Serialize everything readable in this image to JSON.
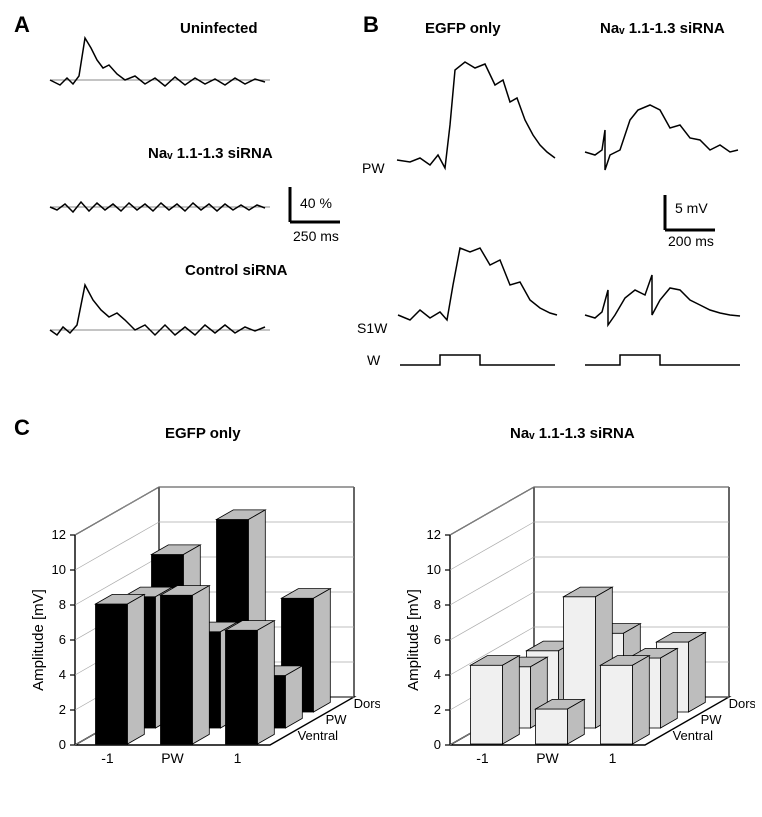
{
  "panelA": {
    "label": "A",
    "traces": {
      "uninfected": {
        "title": "Uninfected"
      },
      "sirna": {
        "title": "Naᵥ 1.1-1.3 siRNA"
      },
      "control": {
        "title": "Control siRNA"
      }
    },
    "scalebar": {
      "y_label": "40 %",
      "x_label": "250 ms"
    }
  },
  "panelB": {
    "label": "B",
    "left_title": "EGFP only",
    "right_title": "Naᵥ 1.1-1.3 siRNA",
    "row1_label": "PW",
    "row2_label": "S1W",
    "stim_label": "W",
    "scalebar": {
      "y_label": "5 mV",
      "x_label": "200 ms"
    }
  },
  "panelC": {
    "label": "C",
    "left_title": "EGFP only",
    "right_title": "Naᵥ 1.1-1.3 siRNA",
    "y_axis_label": "Amplitude [mV]",
    "y_ticks": [
      0,
      2,
      4,
      6,
      8,
      10,
      12
    ],
    "x_categories": [
      "-1",
      "PW",
      "1"
    ],
    "z_categories": [
      "Dorsal",
      "PW",
      "Ventral"
    ],
    "left_bars": {
      "dorsal": {
        "-1": 9.0,
        "PW": 11.0,
        "1": 6.5
      },
      "pw": {
        "-1": 7.5,
        "PW": 5.5,
        "1": 3.0
      },
      "ventral": {
        "-1": 8.0,
        "PW": 8.5,
        "1": 6.5
      }
    },
    "right_bars": {
      "dorsal": {
        "-1": 3.5,
        "PW": 4.5,
        "1": 4.0
      },
      "pw": {
        "-1": 3.5,
        "PW": 7.5,
        "1": 4.0
      },
      "ventral": {
        "-1": 4.5,
        "PW": 2.0,
        "1": 4.5
      }
    },
    "left_bar_color": "#000000",
    "right_bar_color": "#f0f0f0",
    "bar_side_color": "#bdbdbd",
    "axis_color": "#000000",
    "grid_color": "#aaaaaa"
  }
}
